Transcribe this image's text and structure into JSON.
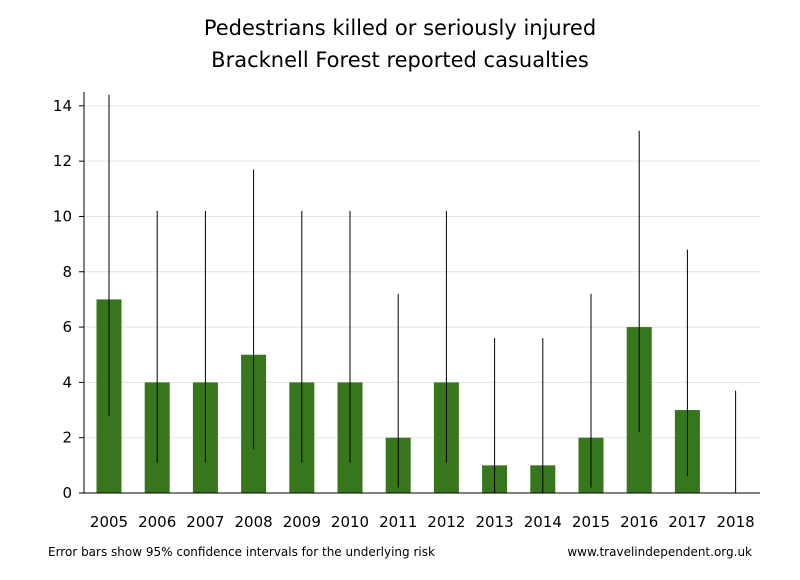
{
  "chart_data": {
    "type": "bar",
    "title": "Pedestrians killed or seriously injured",
    "subtitle": "Bracknell Forest reported casualties",
    "xlabel": "",
    "ylabel": "",
    "categories": [
      "2005",
      "2006",
      "2007",
      "2008",
      "2009",
      "2010",
      "2011",
      "2012",
      "2013",
      "2014",
      "2015",
      "2016",
      "2017",
      "2018"
    ],
    "values": [
      7,
      4,
      4,
      5,
      4,
      4,
      2,
      4,
      1,
      1,
      2,
      6,
      3,
      0
    ],
    "error_low": [
      2.8,
      1.1,
      1.1,
      1.6,
      1.1,
      1.1,
      0.2,
      1.1,
      0.0,
      0.0,
      0.2,
      2.2,
      0.6,
      0.0
    ],
    "error_high": [
      14.4,
      10.2,
      10.2,
      11.7,
      10.2,
      10.2,
      7.2,
      10.2,
      5.6,
      5.6,
      7.2,
      13.1,
      8.8,
      3.7
    ],
    "yticks": [
      0,
      2,
      4,
      6,
      8,
      10,
      12,
      14
    ],
    "ylim": [
      0,
      14.5
    ],
    "grid": true,
    "legend": "none",
    "bar_color": "#38761d",
    "note": "Error bars show 95% confidence intervals for the underlying risk",
    "source": "www.travelindependent.org.uk"
  }
}
